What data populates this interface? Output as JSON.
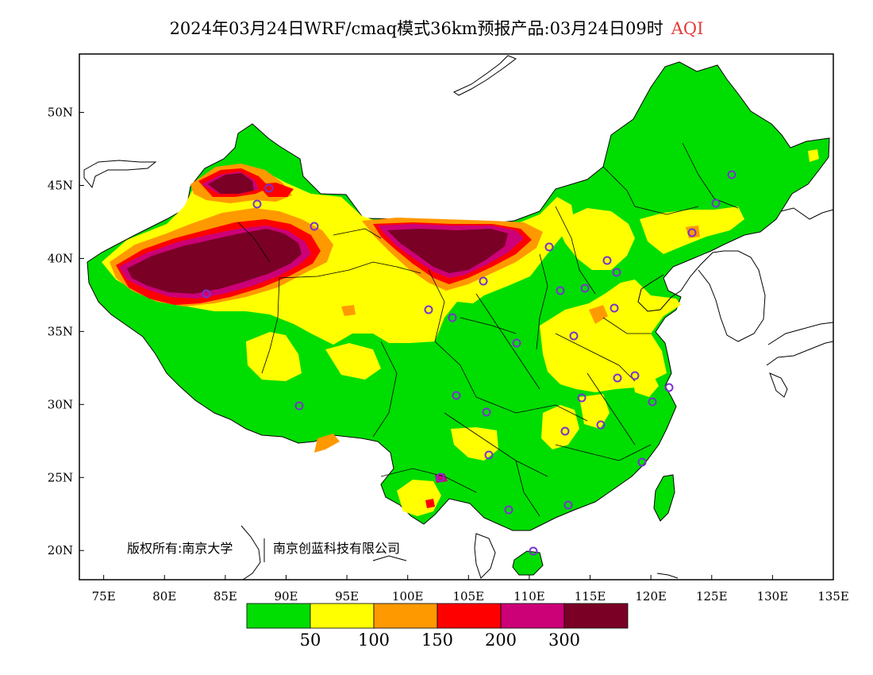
{
  "title": {
    "main": "2024年03月24日WRF/cmaq模式36km预报产品:03月24日09时",
    "variable": "AQI"
  },
  "axes": {
    "x_ticks": [
      "75E",
      "80E",
      "85E",
      "90E",
      "95E",
      "100E",
      "105E",
      "110E",
      "115E",
      "120E",
      "125E",
      "130E",
      "135E"
    ],
    "y_ticks": [
      "50N",
      "45N",
      "40N",
      "35N",
      "30N",
      "25N",
      "20N"
    ],
    "lon_range": [
      73,
      135
    ],
    "lat_range": [
      18,
      54
    ]
  },
  "legend": {
    "thresholds": [
      "50",
      "100",
      "150",
      "200",
      "300"
    ],
    "colors": [
      "#00dd00",
      "#ffff00",
      "#ff9900",
      "#ff0000",
      "#cc0077",
      "#7a0026"
    ]
  },
  "copyright": {
    "owner": "版权所有:南京大学",
    "partner": "南京创蓝科技有限公司"
  },
  "colors": {
    "ocean": "#ffffff",
    "border": "#000000",
    "station_marker": "#7a33cc"
  }
}
